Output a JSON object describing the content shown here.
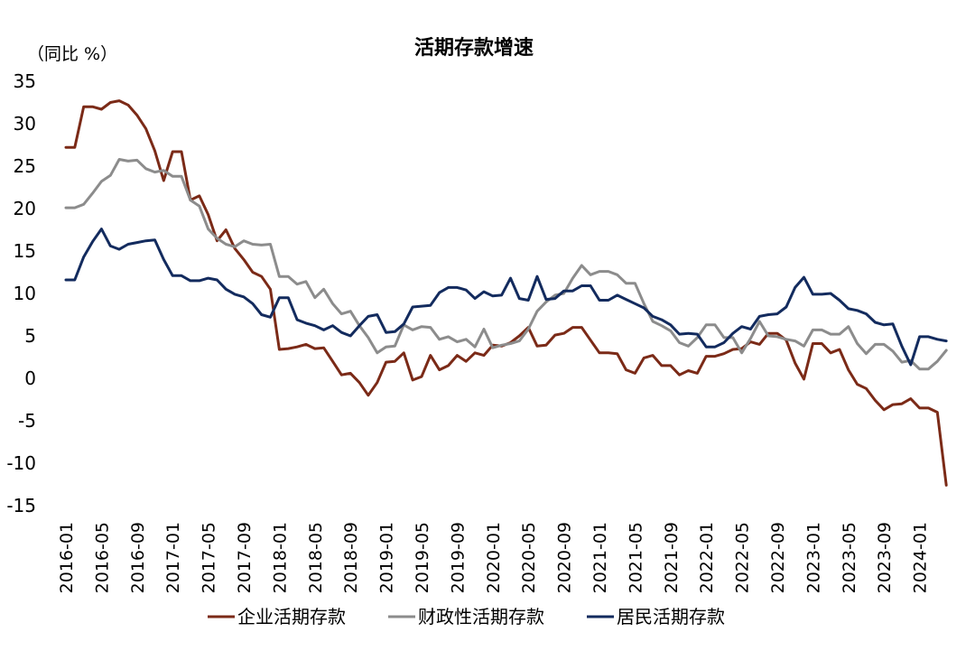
{
  "chart_data": {
    "type": "line",
    "title": "活期存款增速",
    "y_unit_label": "（同比 %）",
    "ylim": [
      -15,
      35
    ],
    "y_ticks": [
      35,
      30,
      25,
      20,
      15,
      10,
      5,
      0,
      -5,
      -10,
      -15
    ],
    "x_start": "2016-01",
    "x_tick_labels": [
      "2016-01",
      "2016-05",
      "2016-09",
      "2017-01",
      "2017-05",
      "2017-09",
      "2018-01",
      "2018-05",
      "2018-09",
      "2019-01",
      "2019-05",
      "2019-09",
      "2020-01",
      "2020-05",
      "2020-09",
      "2021-01",
      "2021-05",
      "2021-09",
      "2022-01",
      "2022-05",
      "2022-09",
      "2023-01",
      "2023-05",
      "2023-09",
      "2024-01"
    ],
    "grid": false,
    "legend_position": "bottom",
    "series": [
      {
        "name": "企业活期存款",
        "color": "#7B2A17",
        "values": [
          27.2,
          27.2,
          32.0,
          32.0,
          31.7,
          32.5,
          32.7,
          32.2,
          31.0,
          29.4,
          26.8,
          23.3,
          26.7,
          26.7,
          21.0,
          21.5,
          19.3,
          16.2,
          17.5,
          15.3,
          14.0,
          12.5,
          12.0,
          10.5,
          3.4,
          3.5,
          3.7,
          4.0,
          3.5,
          3.6,
          2.0,
          0.4,
          0.6,
          -0.5,
          -2.0,
          -0.5,
          1.9,
          2.0,
          3.0,
          -0.2,
          0.2,
          2.7,
          1.0,
          1.5,
          2.7,
          2.0,
          3.0,
          2.7,
          3.9,
          3.8,
          4.2,
          5.0,
          6.0,
          3.8,
          3.9,
          5.1,
          5.3,
          6.0,
          6.0,
          4.5,
          3.0,
          3.0,
          2.9,
          1.0,
          0.6,
          2.4,
          2.7,
          1.5,
          1.5,
          0.4,
          0.9,
          0.6,
          2.6,
          2.6,
          2.9,
          3.4,
          3.5,
          4.3,
          4.0,
          5.3,
          5.3,
          4.5,
          1.8,
          -0.1,
          4.1,
          4.1,
          3.0,
          3.4,
          1.0,
          -0.7,
          -1.2,
          -2.6,
          -3.7,
          -3.1,
          -3.0,
          -2.4,
          -3.5,
          -3.5,
          -4.0,
          -12.6
        ]
      },
      {
        "name": "财政性活期存款",
        "color": "#8C8C8C",
        "values": [
          20.1,
          20.1,
          20.5,
          21.8,
          23.2,
          23.9,
          25.8,
          25.6,
          25.7,
          24.7,
          24.3,
          24.5,
          23.8,
          23.8,
          21.0,
          20.3,
          17.6,
          16.5,
          15.8,
          15.5,
          16.2,
          15.8,
          15.7,
          15.8,
          12.0,
          12.0,
          11.1,
          11.4,
          9.5,
          10.5,
          8.8,
          7.6,
          7.9,
          6.2,
          4.8,
          3.0,
          3.7,
          3.8,
          6.3,
          5.7,
          6.1,
          6.0,
          4.6,
          4.9,
          4.3,
          4.6,
          3.7,
          5.8,
          3.6,
          3.9,
          4.1,
          4.4,
          5.8,
          7.9,
          9.0,
          9.8,
          10.0,
          11.8,
          13.3,
          12.2,
          12.6,
          12.6,
          12.2,
          11.2,
          11.2,
          8.8,
          6.7,
          6.2,
          5.6,
          4.2,
          3.8,
          4.8,
          6.3,
          6.3,
          4.8,
          4.8,
          3.0,
          4.7,
          6.7,
          5.0,
          4.9,
          4.6,
          4.4,
          3.8,
          5.7,
          5.7,
          5.2,
          5.2,
          6.1,
          4.1,
          2.9,
          4.0,
          4.0,
          3.2,
          1.9,
          2.1,
          1.1,
          1.1,
          2.0,
          3.3
        ]
      },
      {
        "name": "居民活期存款",
        "color": "#132B5E",
        "values": [
          11.6,
          11.6,
          14.3,
          16.1,
          17.6,
          15.6,
          15.2,
          15.8,
          16.0,
          16.2,
          16.3,
          14.0,
          12.1,
          12.1,
          11.5,
          11.5,
          11.8,
          11.6,
          10.5,
          9.9,
          9.6,
          8.8,
          7.5,
          7.2,
          9.5,
          9.5,
          6.9,
          6.5,
          6.2,
          5.7,
          6.2,
          5.4,
          5.0,
          6.2,
          7.3,
          7.5,
          5.4,
          5.5,
          6.4,
          8.4,
          8.5,
          8.6,
          10.1,
          10.7,
          10.7,
          10.4,
          9.4,
          10.2,
          9.7,
          9.8,
          11.8,
          9.4,
          9.2,
          12.0,
          9.3,
          9.4,
          10.3,
          10.3,
          10.9,
          10.9,
          9.2,
          9.2,
          9.8,
          9.3,
          8.8,
          8.3,
          7.3,
          6.9,
          6.3,
          5.2,
          5.3,
          5.2,
          3.7,
          3.7,
          4.2,
          5.3,
          6.1,
          5.8,
          7.3,
          7.5,
          7.6,
          8.4,
          10.7,
          11.9,
          9.9,
          9.9,
          10.0,
          9.2,
          8.2,
          8.0,
          7.6,
          6.6,
          6.3,
          6.4,
          3.8,
          1.6,
          4.9,
          4.9,
          4.6,
          4.4
        ]
      }
    ]
  }
}
